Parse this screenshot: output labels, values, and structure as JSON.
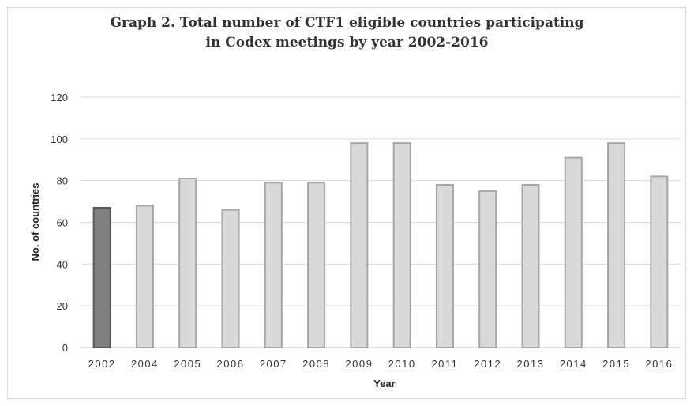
{
  "chart_data": {
    "type": "bar",
    "title_line1": "Graph 2. Total number of  CTF1 eligible countries participating",
    "title_line2": "in Codex meetings by year 2002-2016",
    "xlabel": "Year",
    "ylabel": "No. of countries",
    "categories": [
      "2002",
      "2004",
      "2005",
      "2006",
      "2007",
      "2008",
      "2009",
      "2010",
      "2011",
      "2012",
      "2013",
      "2014",
      "2015",
      "2016"
    ],
    "values": [
      67,
      68,
      81,
      66,
      79,
      79,
      98,
      98,
      78,
      75,
      78,
      91,
      98,
      82
    ],
    "ylim": [
      0,
      120
    ],
    "yticks": [
      0,
      20,
      40,
      60,
      80,
      100,
      120
    ],
    "grid": true,
    "legend": "none",
    "colors": {
      "highlight_fill": "#808080",
      "highlight_stroke": "#595959",
      "bar_fill": "#d9d9d9",
      "bar_stroke": "#a6a6a6",
      "grid": "#d9d9d9"
    },
    "highlight_index": 0
  }
}
